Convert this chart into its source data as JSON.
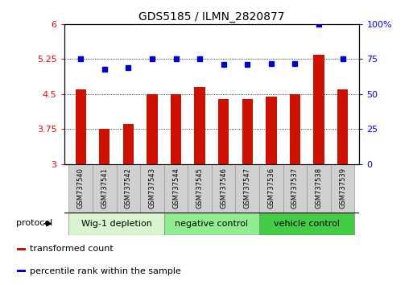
{
  "title": "GDS5185 / ILMN_2820877",
  "samples": [
    "GSM737540",
    "GSM737541",
    "GSM737542",
    "GSM737543",
    "GSM737544",
    "GSM737545",
    "GSM737546",
    "GSM737547",
    "GSM737536",
    "GSM737537",
    "GSM737538",
    "GSM737539"
  ],
  "transformed_count": [
    4.6,
    3.75,
    3.85,
    4.5,
    4.5,
    4.65,
    4.4,
    4.4,
    4.45,
    4.5,
    5.35,
    4.6
  ],
  "percentile_rank": [
    75,
    68,
    69,
    75,
    75,
    75,
    71,
    71,
    72,
    72,
    100,
    75
  ],
  "bar_color": "#cc1100",
  "dot_color": "#0000cc",
  "ylim_left": [
    3,
    6
  ],
  "ylim_right": [
    0,
    100
  ],
  "yticks_left": [
    3,
    3.75,
    4.5,
    5.25,
    6
  ],
  "yticks_right": [
    0,
    25,
    50,
    75,
    100
  ],
  "groups": [
    {
      "label": "Wig-1 depletion",
      "start": 0,
      "end": 4,
      "color": "#d8f5d0"
    },
    {
      "label": "negative control",
      "start": 4,
      "end": 8,
      "color": "#90ee90"
    },
    {
      "label": "vehicle control",
      "start": 8,
      "end": 12,
      "color": "#44cc44"
    }
  ],
  "legend_items": [
    {
      "label": "transformed count",
      "color": "#cc1100"
    },
    {
      "label": "percentile rank within the sample",
      "color": "#0000cc"
    }
  ],
  "protocol_label": "protocol",
  "bar_width": 0.45,
  "title_fontsize": 10,
  "tick_fontsize": 8,
  "sample_fontsize": 6,
  "group_fontsize": 8,
  "legend_fontsize": 8
}
